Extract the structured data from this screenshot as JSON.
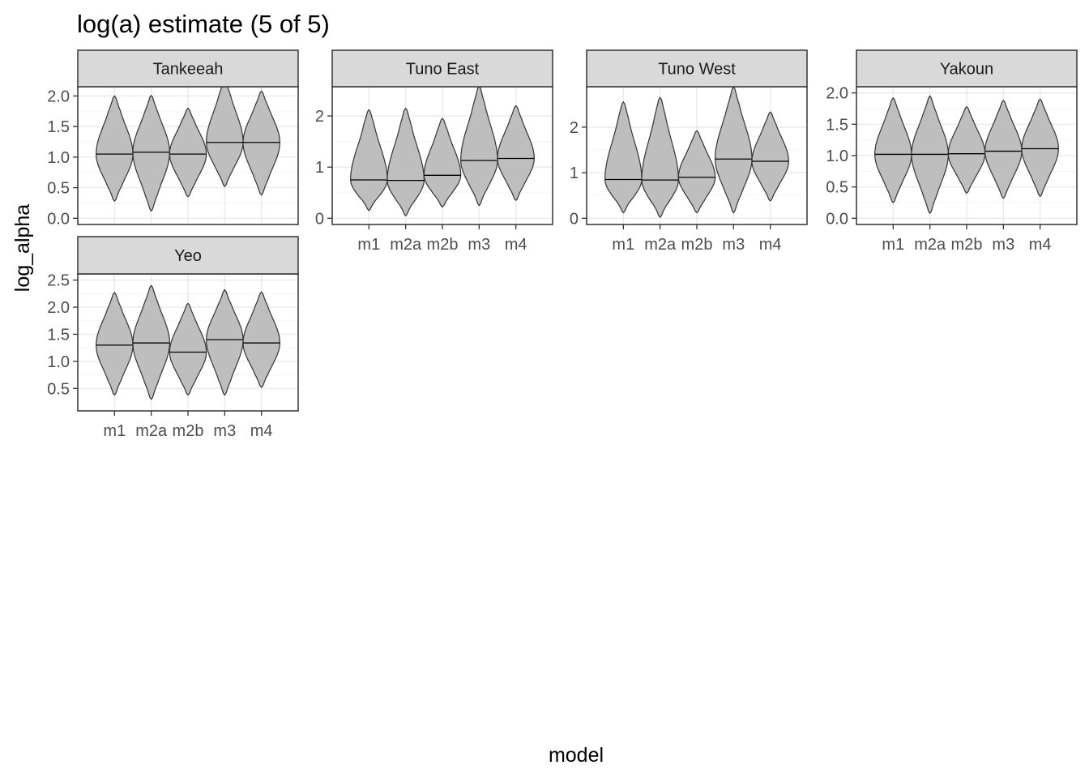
{
  "title": "log(a) estimate (5 of 5)",
  "xlabel": "model",
  "ylabel": "log_alpha",
  "chart_data": {
    "type": "violin",
    "title": "log(a) estimate (5 of 5)",
    "xlabel": "model",
    "ylabel": "log_alpha",
    "categories": [
      "m1",
      "m2a",
      "m2b",
      "m3",
      "m4"
    ],
    "facets": [
      {
        "name": "Tankeeah",
        "ylim": [
          0,
          2.05
        ],
        "yticks": [
          0.0,
          0.5,
          1.0,
          1.5,
          2.0
        ],
        "ytick_labels": [
          "0.0",
          "0.5",
          "1.0",
          "1.5",
          "2.0"
        ],
        "show_x_labels": false,
        "violins": [
          {
            "model": "m1",
            "min": 0.28,
            "max": 2.0,
            "median": 1.05
          },
          {
            "model": "m2a",
            "min": 0.12,
            "max": 2.01,
            "median": 1.08
          },
          {
            "model": "m2b",
            "min": 0.35,
            "max": 1.8,
            "median": 1.05
          },
          {
            "model": "m3",
            "min": 0.52,
            "max": 2.27,
            "median": 1.24
          },
          {
            "model": "m4",
            "min": 0.38,
            "max": 2.08,
            "median": 1.24
          }
        ]
      },
      {
        "name": "Tuno East",
        "ylim": [
          0,
          2.45
        ],
        "yticks": [
          0,
          1,
          2
        ],
        "ytick_labels": [
          "0",
          "1",
          "2"
        ],
        "show_x_labels": true,
        "violins": [
          {
            "model": "m1",
            "min": 0.15,
            "max": 2.12,
            "median": 0.75
          },
          {
            "model": "m2a",
            "min": 0.05,
            "max": 2.15,
            "median": 0.74
          },
          {
            "model": "m2b",
            "min": 0.22,
            "max": 1.95,
            "median": 0.84
          },
          {
            "model": "m3",
            "min": 0.25,
            "max": 2.58,
            "median": 1.13
          },
          {
            "model": "m4",
            "min": 0.35,
            "max": 2.2,
            "median": 1.17
          }
        ]
      },
      {
        "name": "Tuno West",
        "ylim": [
          0,
          2.75
        ],
        "yticks": [
          0,
          1,
          2
        ],
        "ytick_labels": [
          "0",
          "1",
          "2"
        ],
        "show_x_labels": true,
        "violins": [
          {
            "model": "m1",
            "min": 0.12,
            "max": 2.55,
            "median": 0.85
          },
          {
            "model": "m2a",
            "min": 0.02,
            "max": 2.65,
            "median": 0.84
          },
          {
            "model": "m2b",
            "min": 0.12,
            "max": 1.92,
            "median": 0.9
          },
          {
            "model": "m3",
            "min": 0.12,
            "max": 2.88,
            "median": 1.3
          },
          {
            "model": "m4",
            "min": 0.38,
            "max": 2.33,
            "median": 1.25
          }
        ]
      },
      {
        "name": "Yakoun",
        "ylim": [
          0,
          2.0
        ],
        "yticks": [
          0.0,
          0.5,
          1.0,
          1.5,
          2.0
        ],
        "ytick_labels": [
          "0.0",
          "0.5",
          "1.0",
          "1.5",
          "2.0"
        ],
        "show_x_labels": true,
        "violins": [
          {
            "model": "m1",
            "min": 0.25,
            "max": 1.92,
            "median": 1.02
          },
          {
            "model": "m2a",
            "min": 0.08,
            "max": 1.95,
            "median": 1.02
          },
          {
            "model": "m2b",
            "min": 0.4,
            "max": 1.78,
            "median": 1.03
          },
          {
            "model": "m3",
            "min": 0.32,
            "max": 1.88,
            "median": 1.07
          },
          {
            "model": "m4",
            "min": 0.35,
            "max": 1.9,
            "median": 1.11
          }
        ]
      },
      {
        "name": "Yeo",
        "ylim": [
          0.2,
          2.5
        ],
        "yticks": [
          0.5,
          1.0,
          1.5,
          2.0,
          2.5
        ],
        "ytick_labels": [
          "0.5",
          "1.0",
          "1.5",
          "2.0",
          "2.5"
        ],
        "show_x_labels": true,
        "violins": [
          {
            "model": "m1",
            "min": 0.38,
            "max": 2.27,
            "median": 1.3
          },
          {
            "model": "m2a",
            "min": 0.3,
            "max": 2.4,
            "median": 1.34
          },
          {
            "model": "m2b",
            "min": 0.38,
            "max": 2.07,
            "median": 1.17
          },
          {
            "model": "m3",
            "min": 0.38,
            "max": 2.32,
            "median": 1.4
          },
          {
            "model": "m4",
            "min": 0.52,
            "max": 2.28,
            "median": 1.34
          }
        ]
      }
    ],
    "grid": true,
    "colors": {
      "violin_fill": "#bebebe",
      "violin_stroke": "#333333",
      "strip_fill": "#d9d9d9",
      "panel_border": "#333333",
      "grid_major": "#ebebeb",
      "grid_minor": "#f5f5f5"
    }
  }
}
